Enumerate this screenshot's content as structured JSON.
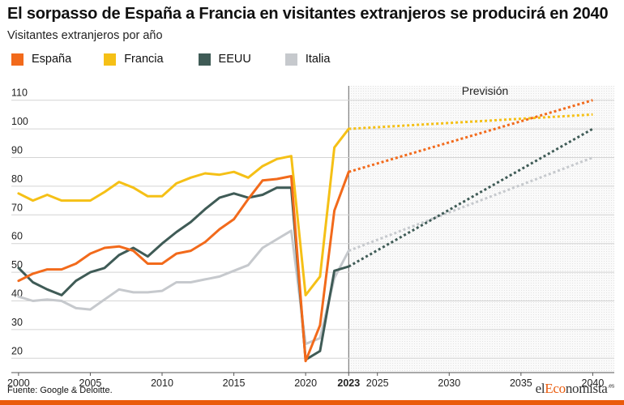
{
  "title": "El sorpasso de España a Francia en visitantes extranjeros se producirá en 2040",
  "subtitle": "Visitantes extranjeros por año",
  "source": "Fuente: Google & Deloitte.",
  "brand": {
    "prefix": "el",
    "accent": "Eco",
    "rest": "nomista",
    "suffix": ".es"
  },
  "colors": {
    "accent_bar": "#ea5b0c"
  },
  "chart_data": {
    "type": "line",
    "ylim": [
      15,
      115
    ],
    "yticks": [
      20,
      30,
      40,
      50,
      60,
      70,
      80,
      90,
      100,
      110
    ],
    "xlim": [
      1999.5,
      2041.5
    ],
    "xticks": [
      2000,
      2005,
      2010,
      2015,
      2020,
      2023,
      2025,
      2030,
      2035,
      2040
    ],
    "forecast_start": 2023,
    "forecast_label": "Previsión",
    "grid": true,
    "legend_position": "top-left",
    "series": [
      {
        "name": "España",
        "color": "#f26a1b",
        "x": [
          2000,
          2001,
          2002,
          2003,
          2004,
          2005,
          2006,
          2007,
          2008,
          2009,
          2010,
          2011,
          2012,
          2013,
          2014,
          2015,
          2016,
          2017,
          2018,
          2019,
          2020,
          2021,
          2022,
          2023
        ],
        "y": [
          47,
          49.5,
          51,
          51,
          53,
          56.5,
          58.5,
          59,
          57.5,
          53,
          53,
          56.5,
          57.5,
          60.5,
          65,
          68.5,
          75.5,
          82,
          82.5,
          83.5,
          19,
          31.5,
          71.5,
          85
        ],
        "forecast": {
          "x": [
            2023,
            2040
          ],
          "y": [
            85,
            110
          ]
        }
      },
      {
        "name": "Francia",
        "color": "#f5c016",
        "x": [
          2000,
          2001,
          2002,
          2003,
          2004,
          2005,
          2006,
          2007,
          2008,
          2009,
          2010,
          2011,
          2012,
          2013,
          2014,
          2015,
          2016,
          2017,
          2018,
          2019,
          2020,
          2021,
          2022,
          2023
        ],
        "y": [
          77.5,
          75,
          77,
          75,
          75,
          75,
          78,
          81.5,
          79.5,
          76.5,
          76.5,
          81,
          83,
          84.5,
          84,
          85,
          83,
          87,
          89.5,
          90.5,
          42,
          48.5,
          93.5,
          100
        ],
        "forecast": {
          "x": [
            2023,
            2040
          ],
          "y": [
            100,
            105
          ]
        }
      },
      {
        "name": "EEUU",
        "color": "#3f5b56",
        "x": [
          2000,
          2001,
          2002,
          2003,
          2004,
          2005,
          2006,
          2007,
          2008,
          2009,
          2010,
          2011,
          2012,
          2013,
          2014,
          2015,
          2016,
          2017,
          2018,
          2019,
          2020,
          2021,
          2022,
          2023
        ],
        "y": [
          51.5,
          46.5,
          44,
          42,
          47,
          50,
          51.5,
          56,
          58.5,
          55.5,
          60,
          64,
          67.5,
          72,
          76,
          77.5,
          76,
          77,
          79.5,
          79.5,
          19.5,
          22.5,
          50.5,
          52
        ],
        "forecast": {
          "x": [
            2023,
            2040
          ],
          "y": [
            52,
            100
          ]
        }
      },
      {
        "name": "Italia",
        "color": "#c6c9cd",
        "x": [
          2000,
          2001,
          2002,
          2003,
          2004,
          2005,
          2006,
          2007,
          2008,
          2009,
          2010,
          2011,
          2012,
          2013,
          2014,
          2015,
          2016,
          2017,
          2018,
          2019,
          2020,
          2021,
          2022,
          2023
        ],
        "y": [
          41.5,
          40,
          40.5,
          40,
          37.5,
          37,
          40.5,
          44,
          43,
          43,
          43.5,
          46.5,
          46.5,
          47.5,
          48.5,
          50.5,
          52.5,
          58.5,
          61.5,
          64.5,
          25,
          27,
          48,
          57.5
        ],
        "forecast": {
          "x": [
            2023,
            2040
          ],
          "y": [
            57.5,
            90
          ]
        }
      }
    ]
  }
}
